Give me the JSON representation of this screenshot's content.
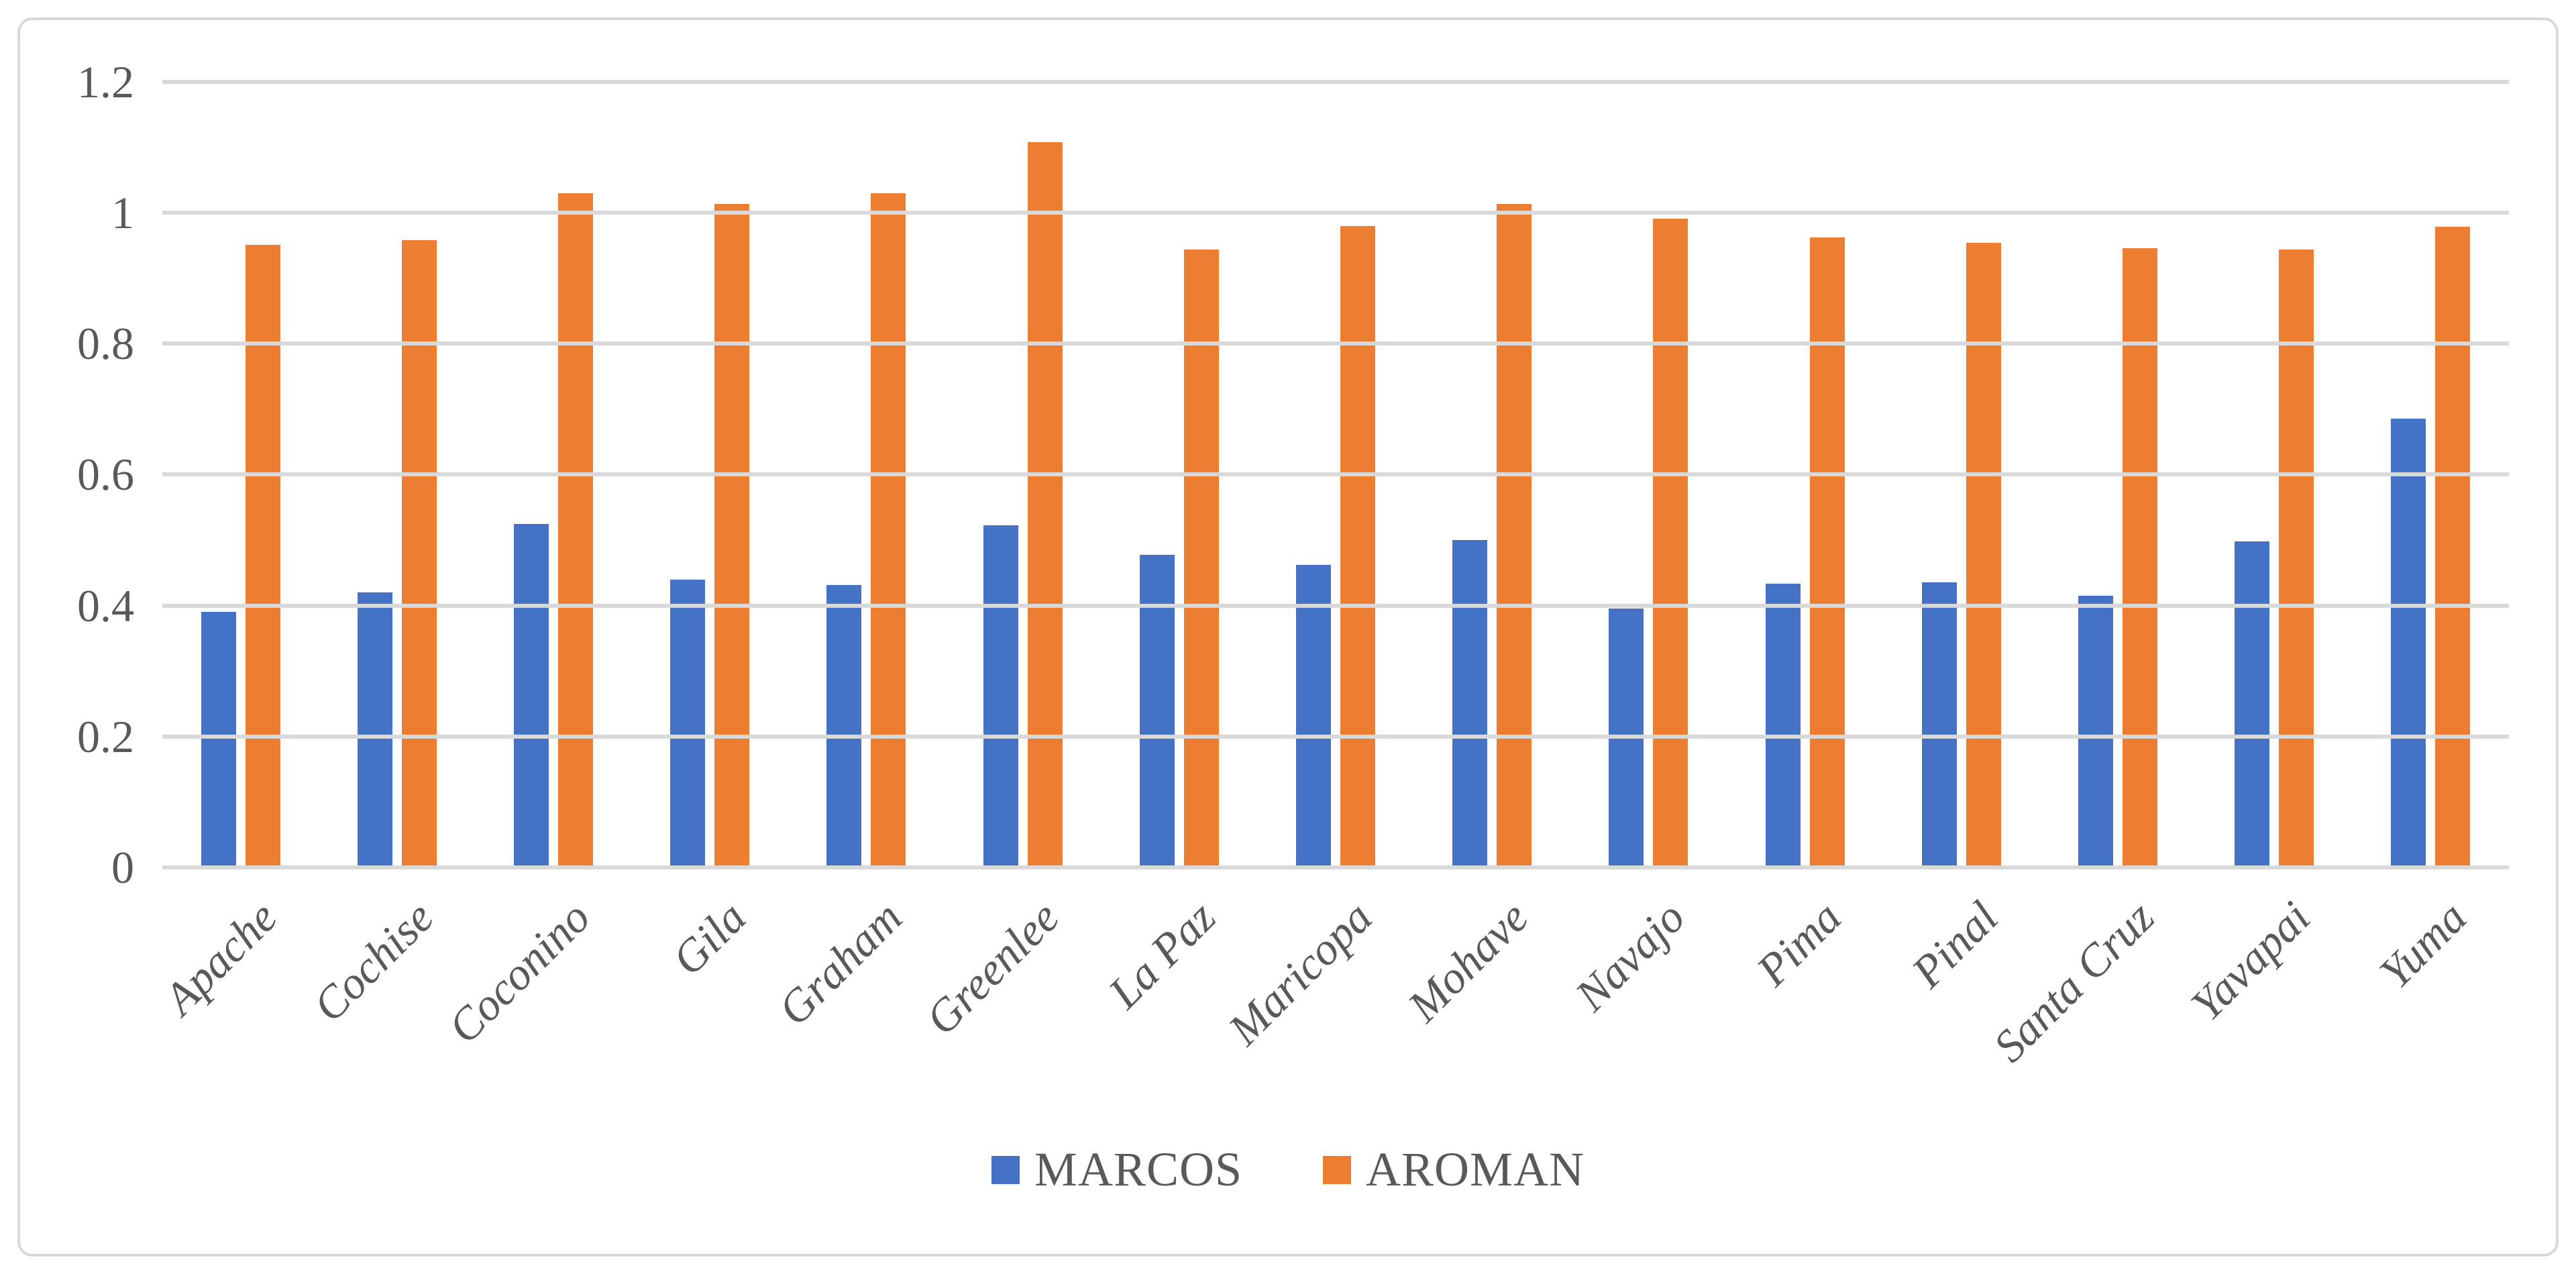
{
  "chart_data": {
    "type": "bar",
    "title": "",
    "categories": [
      "Apache",
      "Cochise",
      "Coconino",
      "Gila",
      "Graham",
      "Greenlee",
      "La Paz",
      "Maricopa",
      "Mohave",
      "Navajo",
      "Pima",
      "Pinal",
      "Santa Cruz",
      "Yavapai",
      "Yuma"
    ],
    "series": [
      {
        "name": "MARCOS",
        "color": "#4472C4",
        "values": [
          0.39,
          0.42,
          0.525,
          0.44,
          0.431,
          0.523,
          0.477,
          0.462,
          0.5,
          0.395,
          0.433,
          0.435,
          0.415,
          0.498,
          0.685
        ]
      },
      {
        "name": "AROMAN",
        "color": "#ED7D31",
        "values": [
          0.951,
          0.958,
          1.03,
          1.013,
          1.03,
          1.108,
          0.944,
          0.979,
          1.013,
          0.991,
          0.962,
          0.954,
          0.946,
          0.944,
          0.978
        ]
      }
    ],
    "ylim": [
      0,
      1.2
    ],
    "ytick_step": 0.2,
    "ytick_labels": [
      "0",
      "0.2",
      "0.4",
      "0.6",
      "0.8",
      "1",
      "1.2"
    ],
    "grid": true,
    "legend_position": "bottom",
    "colors": {
      "axis_text": "#595959",
      "gridline": "#D9D9D9",
      "chart_border": "#D9D9D9",
      "background": "#FFFFFF"
    }
  }
}
